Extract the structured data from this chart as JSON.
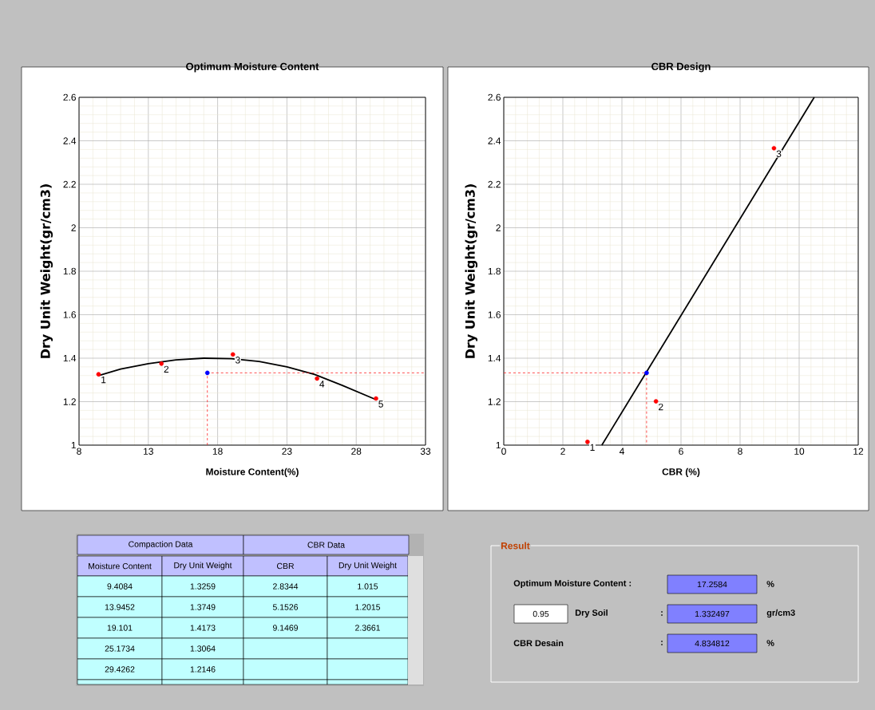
{
  "chart_data": [
    {
      "type": "scatter",
      "title": "Optimum Moisture Content",
      "xlabel": "Moisture Content(%)",
      "ylabel": "Dry Unit Weight(gr/cm3)",
      "xlim": [
        8,
        33
      ],
      "ylim": [
        1,
        2.6
      ],
      "xticks": [
        8,
        13,
        18,
        23,
        28,
        33
      ],
      "yticks": [
        1,
        1.2,
        1.4,
        1.6,
        1.8,
        2,
        2.2,
        2.4,
        2.6
      ],
      "grid": true,
      "series": [
        {
          "type": "line",
          "color": "#000000",
          "marker": "none",
          "line_style": "solid",
          "x": [
            9.4,
            11,
            13,
            15,
            17,
            19,
            21,
            23,
            25,
            27,
            29.4
          ],
          "values": [
            1.32,
            1.35,
            1.375,
            1.392,
            1.4,
            1.398,
            1.385,
            1.36,
            1.325,
            1.275,
            1.21
          ]
        },
        {
          "type": "scatter",
          "color": "#ff0000",
          "marker": "circle",
          "x": [
            9.4084,
            13.9452,
            19.101,
            25.1734,
            29.4262
          ],
          "values": [
            1.3259,
            1.3749,
            1.4173,
            1.3064,
            1.2146
          ]
        },
        {
          "type": "scatter",
          "color": "#0000ff",
          "marker": "circle",
          "x": [
            17.2584
          ],
          "values": [
            1.332497
          ]
        },
        {
          "type": "line",
          "color": "#ff0000",
          "marker": "none",
          "line_style": "dashed",
          "x": [
            17.2584,
            17.2584,
            33
          ],
          "values": [
            1,
            1.332497,
            1.332497
          ]
        }
      ],
      "annotations": [
        {
          "text": "1",
          "x": 9.4084,
          "y": 1.3259
        },
        {
          "text": "2",
          "x": 13.9452,
          "y": 1.3749
        },
        {
          "text": "3",
          "x": 19.101,
          "y": 1.4173
        },
        {
          "text": "4",
          "x": 25.1734,
          "y": 1.3064
        },
        {
          "text": "5",
          "x": 29.4262,
          "y": 1.2146
        }
      ]
    },
    {
      "type": "scatter",
      "title": "CBR Design",
      "xlabel": "CBR (%)",
      "ylabel": "Dry Unit Weight(gr/cm3)",
      "xlim": [
        0,
        12
      ],
      "ylim": [
        1,
        2.6
      ],
      "xticks": [
        0,
        2,
        4,
        6,
        8,
        10,
        12
      ],
      "yticks": [
        1,
        1.2,
        1.4,
        1.6,
        1.8,
        2,
        2.2,
        2.4,
        2.6
      ],
      "grid": true,
      "series": [
        {
          "type": "line",
          "color": "#000000",
          "marker": "none",
          "line_style": "solid",
          "x": [
            3.32,
            10.51
          ],
          "values": [
            1,
            2.6
          ]
        },
        {
          "type": "scatter",
          "color": "#ff0000",
          "marker": "circle",
          "x": [
            2.8344,
            5.1526,
            9.1469
          ],
          "values": [
            1.015,
            1.2015,
            2.3661
          ]
        },
        {
          "type": "scatter",
          "color": "#0000ff",
          "marker": "circle",
          "x": [
            4.834812
          ],
          "values": [
            1.332497
          ]
        },
        {
          "type": "line",
          "color": "#ff0000",
          "marker": "none",
          "line_style": "dashed",
          "x": [
            0,
            4.834812,
            4.834812
          ],
          "values": [
            1.332497,
            1.332497,
            1
          ]
        }
      ],
      "annotations": [
        {
          "text": "1",
          "x": 2.8344,
          "y": 1.015
        },
        {
          "text": "2",
          "x": 5.1526,
          "y": 1.2015
        },
        {
          "text": "3",
          "x": 9.1469,
          "y": 2.3661
        }
      ]
    },
    {
      "type": "other",
      "annotations": [
        "Compaction Data",
        "CBR Data",
        "Moisture Content",
        "Dry Unit Weight",
        "CBR",
        "Dry Unit Weight",
        "9.4084",
        "1.3259",
        "2.8344",
        "1.015",
        "13.9452",
        "1.3749",
        "5.1526",
        "1.2015",
        "19.101",
        "1.4173",
        "9.1469",
        "2.3661",
        "25.1734",
        "1.3064",
        "29.4262",
        "1.2146",
        "Result",
        "Optimum Moisture Content :",
        "17.2584",
        "%",
        "0.95",
        "Dry Soil",
        ":",
        "1.332497",
        "gr/cm3",
        "CBR Desain",
        ":",
        "4.834812",
        "%"
      ]
    }
  ]
}
